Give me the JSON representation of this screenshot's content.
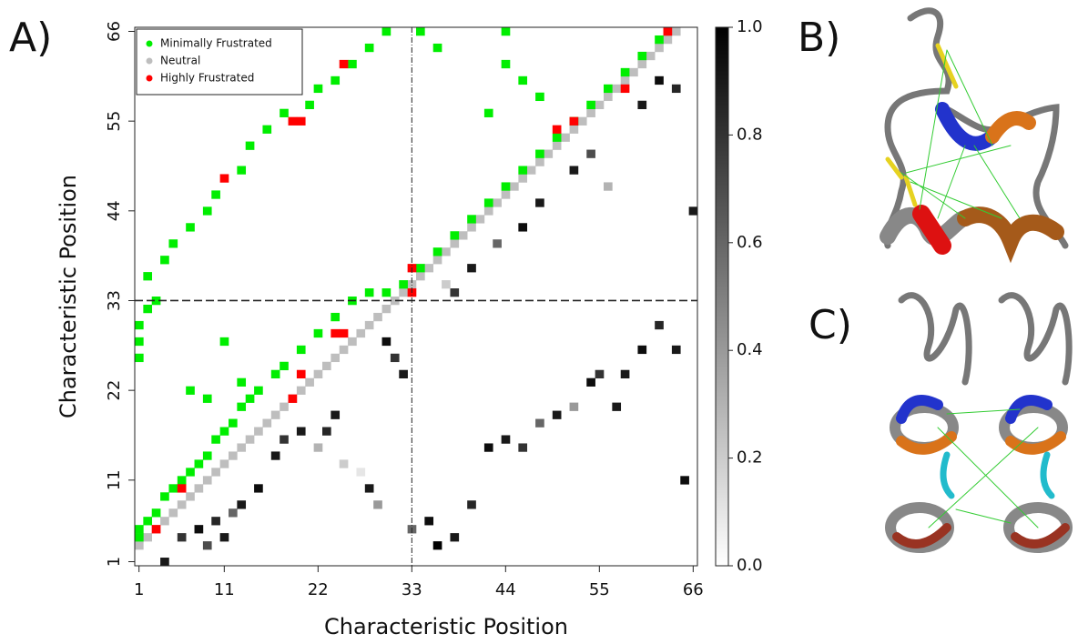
{
  "panels": [
    "A)",
    "B)",
    "C)"
  ],
  "chart_data": {
    "type": "heatmap",
    "xlabel": "Characteristic Position",
    "ylabel": "Characteristic Position",
    "xlim": [
      0.5,
      66.5
    ],
    "ylim": [
      0.5,
      66.5
    ],
    "xticks": [
      1,
      11,
      22,
      33,
      44,
      55,
      66
    ],
    "yticks": [
      1,
      11,
      22,
      33,
      44,
      55,
      66
    ],
    "dividers": [
      33
    ],
    "legend": "upper left",
    "series": [
      {
        "name": "Neutral",
        "color": "#bebebe",
        "x": [
          1,
          2,
          3,
          4,
          5,
          6,
          7,
          8,
          9,
          10,
          11,
          12,
          13,
          14,
          15,
          16,
          17,
          18,
          19,
          20,
          21,
          22,
          23,
          24,
          25,
          26,
          27,
          28,
          29,
          30,
          31,
          32,
          33,
          34,
          35,
          36,
          37,
          38,
          39,
          40,
          41,
          42,
          43,
          44,
          45,
          46,
          47,
          48,
          49,
          50,
          51,
          52,
          53,
          54,
          55,
          56,
          57,
          58,
          59,
          60,
          61,
          62,
          63,
          64
        ],
        "y": [
          3,
          4,
          5,
          6,
          7,
          8,
          9,
          10,
          11,
          12,
          13,
          14,
          15,
          16,
          17,
          18,
          19,
          20,
          21,
          22,
          23,
          24,
          25,
          26,
          27,
          28,
          29,
          30,
          31,
          32,
          33,
          34,
          35,
          36,
          37,
          38,
          39,
          40,
          41,
          42,
          43,
          44,
          45,
          46,
          47,
          48,
          49,
          50,
          51,
          52,
          53,
          54,
          55,
          56,
          57,
          58,
          59,
          60,
          61,
          62,
          63,
          64,
          65,
          66
        ]
      },
      {
        "name": "Minimally Frustrated",
        "color": "#00ee00",
        "x": [
          1,
          1,
          2,
          3,
          4,
          5,
          6,
          7,
          8,
          9,
          10,
          11,
          12,
          13,
          14,
          15,
          17,
          18,
          20,
          22,
          24,
          26,
          28,
          30,
          32,
          1,
          1,
          1,
          2,
          3,
          2,
          4,
          5,
          7,
          9,
          10,
          13,
          14,
          16,
          18,
          21,
          22,
          24,
          26,
          28,
          30,
          34,
          36,
          38,
          40,
          42,
          44,
          46,
          48,
          50,
          52,
          54,
          56,
          58,
          60,
          62,
          34,
          36,
          44,
          46,
          48,
          44,
          42,
          7,
          9,
          11,
          13
        ],
        "y": [
          4,
          5,
          6,
          7,
          9,
          10,
          11,
          12,
          13,
          14,
          16,
          17,
          18,
          20,
          21,
          22,
          24,
          25,
          27,
          29,
          31,
          33,
          34,
          34,
          35,
          26,
          28,
          30,
          32,
          33,
          36,
          38,
          40,
          42,
          44,
          46,
          49,
          52,
          54,
          56,
          57,
          59,
          60,
          62,
          64,
          66,
          37,
          39,
          41,
          43,
          45,
          47,
          49,
          51,
          53,
          55,
          57,
          59,
          61,
          63,
          65,
          66,
          64,
          62,
          60,
          58,
          66,
          56,
          22,
          21,
          28,
          23
        ]
      },
      {
        "name": "Highly Frustrated",
        "color": "#ff0000",
        "x": [
          3,
          6,
          19,
          20,
          24,
          25,
          33,
          33,
          50,
          52,
          58,
          63,
          19,
          20,
          11,
          25
        ],
        "y": [
          5,
          10,
          21,
          24,
          29,
          29,
          34,
          37,
          54,
          55,
          59,
          66,
          55,
          55,
          48,
          62
        ]
      }
    ],
    "lower": {
      "x": [
        4,
        6,
        8,
        9,
        10,
        11,
        12,
        13,
        15,
        17,
        18,
        20,
        22,
        23,
        24,
        25,
        27,
        28,
        29,
        30,
        31,
        32,
        33,
        35,
        36,
        38,
        40,
        42,
        44,
        46,
        48,
        50,
        52,
        54,
        55,
        57,
        58,
        60,
        62,
        64,
        65,
        66,
        56,
        48,
        46,
        40,
        38,
        52,
        54,
        60,
        62,
        64,
        43,
        37
      ],
      "y": [
        1,
        4,
        5,
        3,
        6,
        4,
        7,
        8,
        10,
        14,
        16,
        17,
        15,
        17,
        19,
        13,
        12,
        10,
        8,
        28,
        26,
        24,
        5,
        6,
        3,
        4,
        8,
        15,
        16,
        15,
        18,
        19,
        20,
        23,
        24,
        20,
        24,
        27,
        30,
        27,
        11,
        44,
        47,
        45,
        42,
        37,
        34,
        49,
        51,
        57,
        60,
        59,
        40,
        35
      ],
      "values": [
        0.9,
        0.8,
        0.95,
        0.7,
        0.85,
        0.9,
        0.6,
        0.9,
        0.95,
        0.9,
        0.8,
        0.9,
        0.3,
        0.85,
        0.9,
        0.2,
        0.1,
        0.9,
        0.4,
        0.95,
        0.8,
        0.9,
        0.6,
        0.95,
        1,
        0.9,
        0.85,
        0.95,
        0.9,
        0.8,
        0.6,
        0.9,
        0.4,
        0.95,
        0.8,
        0.9,
        0.9,
        0.95,
        0.85,
        0.9,
        0.95,
        0.9,
        0.3,
        0.9,
        0.95,
        0.9,
        0.8,
        0.9,
        0.7,
        0.9,
        0.95,
        0.85,
        0.6,
        0.2
      ]
    },
    "colorbar": {
      "clim": [
        0,
        1
      ],
      "ticks": [
        {
          "value": 0,
          "label": "0.0"
        },
        0.2,
        0.4,
        0.6,
        0.8,
        {
          "value": 1,
          "label": "1.0"
        }
      ]
    }
  }
}
